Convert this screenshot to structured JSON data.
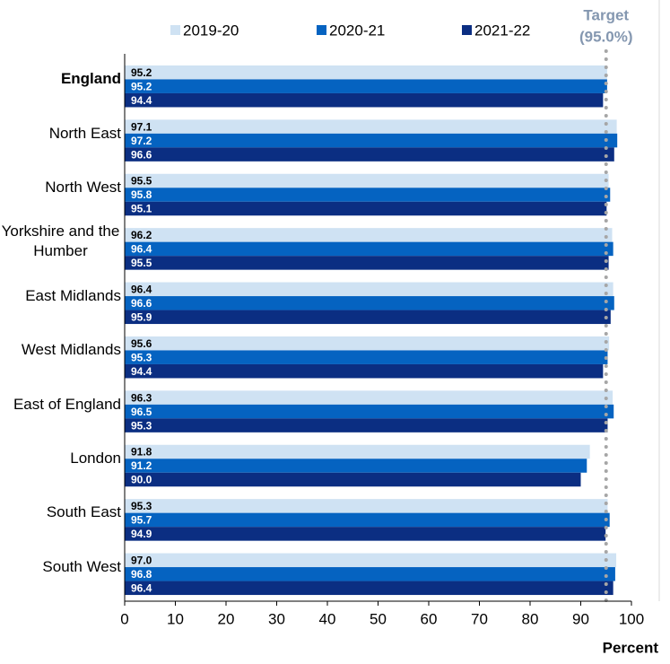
{
  "chart_data": {
    "type": "bar",
    "orientation": "horizontal",
    "categories": [
      "England",
      "North East",
      "North West",
      "Yorkshire and the Humber",
      "East Midlands",
      "West Midlands",
      "East of England",
      "London",
      "South East",
      "South West"
    ],
    "series": [
      {
        "name": "2019-20",
        "color": "#cfe2f3",
        "values": [
          95.2,
          97.1,
          95.5,
          96.2,
          96.4,
          95.6,
          96.3,
          91.8,
          95.3,
          97.0
        ],
        "value_labels": [
          "95.2",
          "97.1",
          "95.5",
          "96.2",
          "96.4",
          "95.6",
          "96.3",
          "91.8",
          "95.3",
          "97.0"
        ]
      },
      {
        "name": "2020-21",
        "color": "#0563c1",
        "values": [
          95.2,
          97.2,
          95.8,
          96.4,
          96.6,
          95.3,
          96.5,
          91.2,
          95.7,
          96.8
        ],
        "value_labels": [
          "95.2",
          "97.2",
          "95.8",
          "96.4",
          "96.6",
          "95.3",
          "96.5",
          "91.2",
          "95.7",
          "96.8"
        ]
      },
      {
        "name": "2021-22",
        "color": "#0b2e82",
        "values": [
          94.4,
          96.6,
          95.1,
          95.5,
          95.9,
          94.4,
          95.3,
          90.0,
          94.9,
          96.4
        ],
        "value_labels": [
          "94.4",
          "96.6",
          "95.1",
          "95.5",
          "95.9",
          "94.4",
          "95.3",
          "90.0",
          "94.9",
          "96.4"
        ]
      }
    ],
    "x_label": "Percent",
    "xlim": [
      0,
      100
    ],
    "xticks": [
      0,
      10,
      20,
      30,
      40,
      50,
      60,
      70,
      80,
      90,
      100
    ],
    "target": {
      "value": 95,
      "label": "Target",
      "sublabel": "(95.0%)"
    },
    "legend": "top"
  }
}
